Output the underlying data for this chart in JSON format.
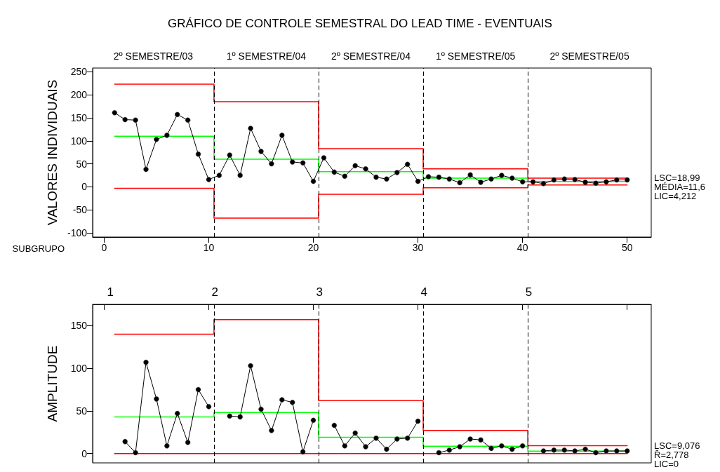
{
  "chart_data": [
    {
      "type": "line",
      "title": "GRÁFICO DE CONTROLE SEMESTRAL DO LEAD TIME - EVENTUAIS",
      "ylabel": "VALORES INDIVIDUAIS",
      "xlabel": "SUBGRUPO",
      "marker": "circle",
      "xlim": [
        -1.1,
        52.3
      ],
      "xticks": [
        0,
        10,
        20,
        30,
        40,
        50
      ],
      "ylim": [
        -109,
        258
      ],
      "yticks": [
        -100,
        -50,
        0,
        50,
        100,
        150,
        200,
        250
      ],
      "x": [
        1,
        2,
        3,
        4,
        5,
        6,
        7,
        8,
        9,
        10,
        11,
        12,
        13,
        14,
        15,
        16,
        17,
        18,
        19,
        20,
        21,
        22,
        23,
        24,
        25,
        26,
        27,
        28,
        29,
        30,
        31,
        32,
        33,
        34,
        35,
        36,
        37,
        38,
        39,
        40,
        41,
        42,
        43,
        44,
        45,
        46,
        47,
        48,
        49,
        50
      ],
      "series": [
        {
          "color": "#000000",
          "values": [
            161,
            146,
            145,
            38,
            103,
            112,
            157,
            145,
            71,
            16,
            25,
            69,
            25,
            127,
            77,
            50,
            112,
            54,
            52,
            12,
            63,
            32,
            23,
            46,
            39,
            21,
            17,
            31,
            49,
            12,
            22,
            21,
            17,
            9,
            26,
            10,
            17,
            25,
            19,
            11,
            11,
            7,
            15,
            17,
            16,
            10,
            8,
            11,
            15,
            15
          ]
        },
        {
          "type": "step",
          "color": "#ff0000",
          "marker": "none",
          "values": [
            223,
            223,
            223,
            223,
            223,
            223,
            223,
            223,
            223,
            223,
            185,
            185,
            185,
            185,
            185,
            185,
            185,
            185,
            185,
            185,
            83,
            83,
            83,
            83,
            83,
            83,
            83,
            83,
            83,
            83,
            39,
            39,
            39,
            39,
            39,
            39,
            39,
            39,
            39,
            39,
            18.99,
            18.99,
            18.99,
            18.99,
            18.99,
            18.99,
            18.99,
            18.99,
            18.99,
            18.99
          ]
        },
        {
          "type": "step",
          "color": "#00ff00",
          "marker": "none",
          "values": [
            110,
            110,
            110,
            110,
            110,
            110,
            110,
            110,
            110,
            110,
            60,
            60,
            60,
            60,
            60,
            60,
            60,
            60,
            60,
            60,
            33,
            33,
            33,
            33,
            33,
            33,
            33,
            33,
            33,
            33,
            19,
            19,
            19,
            19,
            19,
            19,
            19,
            19,
            19,
            19,
            11.6,
            11.6,
            11.6,
            11.6,
            11.6,
            11.6,
            11.6,
            11.6,
            11.6,
            11.6
          ]
        },
        {
          "type": "step",
          "color": "#ff0000",
          "marker": "none",
          "values": [
            -3,
            -3,
            -3,
            -3,
            -3,
            -3,
            -3,
            -3,
            -3,
            -3,
            -68,
            -68,
            -68,
            -68,
            -68,
            -68,
            -68,
            -68,
            -68,
            -68,
            -16,
            -16,
            -16,
            -16,
            -16,
            -16,
            -16,
            -16,
            -16,
            -16,
            -2,
            -2,
            -2,
            -2,
            -2,
            -2,
            -2,
            -2,
            -2,
            -2,
            4.212,
            4.212,
            4.212,
            4.212,
            4.212,
            4.212,
            4.212,
            4.212,
            4.212,
            4.212
          ]
        }
      ],
      "ref_lines": [
        {
          "axis": "x",
          "value": 10.5,
          "color": "#000000",
          "line_style": "dashed"
        },
        {
          "axis": "x",
          "value": 20.5,
          "color": "#000000",
          "line_style": "dashed"
        },
        {
          "axis": "x",
          "value": 30.5,
          "color": "#000000",
          "line_style": "dashed"
        },
        {
          "axis": "x",
          "value": 40.5,
          "color": "#000000",
          "line_style": "dashed"
        }
      ],
      "annotations": [
        "2º SEMESTRE/03",
        "1º SEMESTRE/04",
        "2º SEMESTRE/04",
        "1º SEMESTRE/05",
        "2º SEMESTRE/05",
        "LSC=18,99",
        "MÉDIA=11,6",
        "LIC=4,212"
      ]
    },
    {
      "type": "line",
      "ylabel": "AMPLITUDE",
      "marker": "circle",
      "tick_labels": "y",
      "xlim": [
        -1.1,
        52.3
      ],
      "xticks": [
        {
          "value": 0,
          "label": null
        },
        {
          "value": 10,
          "label": null
        },
        {
          "value": 20,
          "label": null
        },
        {
          "value": 30,
          "label": null
        },
        {
          "value": 40,
          "label": null
        },
        {
          "value": 50,
          "label": null
        }
      ],
      "ylim": [
        -11,
        175
      ],
      "yticks": [
        0,
        50,
        100,
        150
      ],
      "x": [
        1,
        2,
        3,
        4,
        5,
        6,
        7,
        8,
        9,
        10,
        11,
        12,
        13,
        14,
        15,
        16,
        17,
        18,
        19,
        20,
        21,
        22,
        23,
        24,
        25,
        26,
        27,
        28,
        29,
        30,
        31,
        32,
        33,
        34,
        35,
        36,
        37,
        38,
        39,
        40,
        41,
        42,
        43,
        44,
        45,
        46,
        47,
        48,
        49,
        50
      ],
      "series": [
        {
          "color": "#000000",
          "values": [
            null,
            14,
            1,
            107,
            64,
            9,
            47,
            13,
            75,
            55,
            null,
            44,
            43,
            103,
            52,
            27,
            63,
            60,
            2,
            39,
            null,
            33,
            9,
            24,
            8,
            18,
            5,
            17,
            18,
            38,
            null,
            1,
            4,
            8,
            17,
            16,
            6,
            9,
            5,
            9,
            null,
            3,
            4,
            4,
            3,
            5,
            1,
            3,
            3,
            3
          ]
        },
        {
          "type": "step",
          "color": "#ff0000",
          "marker": "none",
          "values": [
            140,
            140,
            140,
            140,
            140,
            140,
            140,
            140,
            140,
            140,
            157,
            157,
            157,
            157,
            157,
            157,
            157,
            157,
            157,
            157,
            62,
            62,
            62,
            62,
            62,
            62,
            62,
            62,
            62,
            62,
            27,
            27,
            27,
            27,
            27,
            27,
            27,
            27,
            27,
            27,
            9.076,
            9.076,
            9.076,
            9.076,
            9.076,
            9.076,
            9.076,
            9.076,
            9.076,
            9.076
          ]
        },
        {
          "type": "step",
          "color": "#00ff00",
          "marker": "none",
          "values": [
            43,
            43,
            43,
            43,
            43,
            43,
            43,
            43,
            43,
            43,
            48,
            48,
            48,
            48,
            48,
            48,
            48,
            48,
            48,
            48,
            19,
            19,
            19,
            19,
            19,
            19,
            19,
            19,
            19,
            19,
            8.5,
            8.5,
            8.5,
            8.5,
            8.5,
            8.5,
            8.5,
            8.5,
            8.5,
            8.5,
            2.778,
            2.778,
            2.778,
            2.778,
            2.778,
            2.778,
            2.778,
            2.778,
            2.778,
            2.778
          ]
        },
        {
          "type": "step",
          "color": "#ff0000",
          "marker": "none",
          "values": [
            0,
            0,
            0,
            0,
            0,
            0,
            0,
            0,
            0,
            0,
            0,
            0,
            0,
            0,
            0,
            0,
            0,
            0,
            0,
            0,
            0,
            0,
            0,
            0,
            0,
            0,
            0,
            0,
            0,
            0,
            0,
            0,
            0,
            0,
            0,
            0,
            0,
            0,
            0,
            0,
            0,
            0,
            0,
            0,
            0,
            0,
            0,
            0,
            0,
            0
          ]
        }
      ],
      "ref_lines": [
        {
          "axis": "x",
          "value": 10.5,
          "color": "#000000",
          "line_style": "dashed"
        },
        {
          "axis": "x",
          "value": 20.5,
          "color": "#000000",
          "line_style": "dashed"
        },
        {
          "axis": "x",
          "value": 30.5,
          "color": "#000000",
          "line_style": "dashed"
        },
        {
          "axis": "x",
          "value": 40.5,
          "color": "#000000",
          "line_style": "dashed"
        }
      ],
      "annotations": [
        "1",
        "2",
        "3",
        "4",
        "5",
        "LSC=9,076",
        "R̄=2,778",
        "LIC=0"
      ]
    }
  ]
}
